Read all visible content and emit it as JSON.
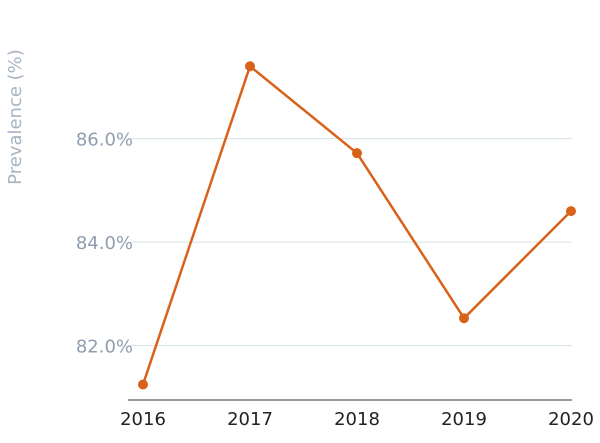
{
  "chart_data": {
    "type": "line",
    "title": "",
    "xlabel": "",
    "ylabel": "Prevalence (%)",
    "categories": [
      "2016",
      "2017",
      "2018",
      "2019",
      "2020"
    ],
    "series": [
      {
        "values": [
          81.25,
          87.4,
          85.72,
          82.53,
          84.6
        ],
        "color": "#d9621a"
      }
    ],
    "ylim": [
      80.95,
      88.1
    ],
    "yticks": [
      82.0,
      84.0,
      86.0
    ],
    "ytick_labels": [
      "82.0%",
      "84.0%",
      "86.0%"
    ],
    "grid": true,
    "legend": "none",
    "colors": {
      "line": "#d9621a",
      "grid": "#d6e3e2",
      "axis_text": "#8e9eaf",
      "ylabel_text": "#a8b5c3",
      "x_text": "#222222"
    }
  }
}
